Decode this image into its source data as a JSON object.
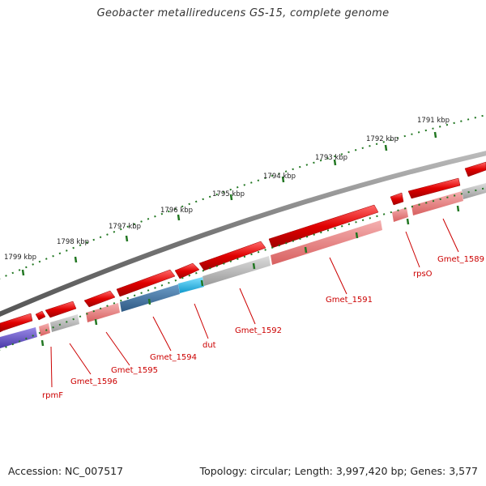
{
  "title": "Geobacter metallireducens GS-15, complete genome",
  "accession": "Accession: NC_007517",
  "topology": "Topology: circular; Length: 3,997,420 bp; Genes: 3,577",
  "kbp_labels": [
    "1791 kbp",
    "1792 kbp",
    "1793 kbp",
    "1794 kbp",
    "1795 kbp",
    "1796 kbp",
    "1797 kbp",
    "1798 kbp",
    "1799 kbp"
  ],
  "gene_labels": [
    "Gmet_1589",
    "rpsO",
    "Gmet_1591",
    "Gmet_1592",
    "dut",
    "Gmet_1594",
    "Gmet_1595",
    "Gmet_1596",
    "rpmF"
  ],
  "colors": {
    "backbone": "#888888",
    "gene_red": "#e00000",
    "cds_pink": "#e88080",
    "cds_gray": "#b8b8b8",
    "cds_blue": "#4a7aa8",
    "cds_cyan": "#22bbee",
    "cds_purple": "#6a5acd",
    "ticks": "#227722",
    "label_text": "#cc0000"
  }
}
